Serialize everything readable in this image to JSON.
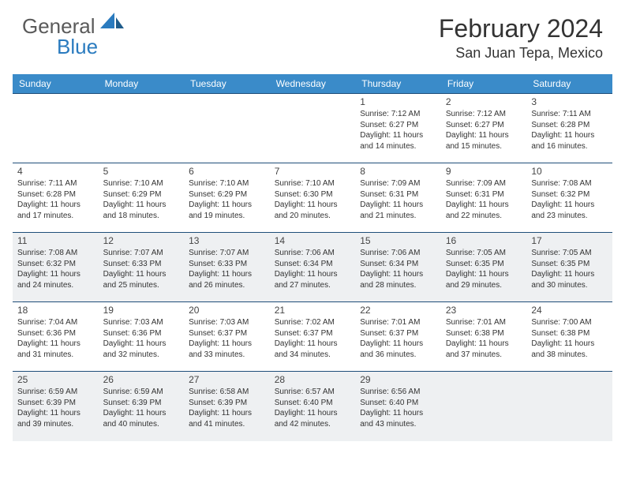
{
  "brand": {
    "part1": "General",
    "part2": "Blue"
  },
  "title": "February 2024",
  "location": "San Juan Tepa, Mexico",
  "colors": {
    "header_bg": "#3a8bc9",
    "header_text": "#ffffff",
    "shaded_bg": "#eef0f2",
    "cell_border": "#1f4e79",
    "logo_gray": "#5a5a5a",
    "logo_blue": "#2a7bbf",
    "text": "#333333"
  },
  "fonts": {
    "title_pt": 32,
    "location_pt": 18,
    "dow_pt": 12,
    "daynum_pt": 12,
    "body_pt": 10
  },
  "days_of_week": [
    "Sunday",
    "Monday",
    "Tuesday",
    "Wednesday",
    "Thursday",
    "Friday",
    "Saturday"
  ],
  "weeks": [
    [
      null,
      null,
      null,
      null,
      {
        "n": "1",
        "sr": "Sunrise: 7:12 AM",
        "ss": "Sunset: 6:27 PM",
        "dl": "Daylight: 11 hours and 14 minutes."
      },
      {
        "n": "2",
        "sr": "Sunrise: 7:12 AM",
        "ss": "Sunset: 6:27 PM",
        "dl": "Daylight: 11 hours and 15 minutes."
      },
      {
        "n": "3",
        "sr": "Sunrise: 7:11 AM",
        "ss": "Sunset: 6:28 PM",
        "dl": "Daylight: 11 hours and 16 minutes."
      }
    ],
    [
      {
        "n": "4",
        "sr": "Sunrise: 7:11 AM",
        "ss": "Sunset: 6:28 PM",
        "dl": "Daylight: 11 hours and 17 minutes."
      },
      {
        "n": "5",
        "sr": "Sunrise: 7:10 AM",
        "ss": "Sunset: 6:29 PM",
        "dl": "Daylight: 11 hours and 18 minutes."
      },
      {
        "n": "6",
        "sr": "Sunrise: 7:10 AM",
        "ss": "Sunset: 6:29 PM",
        "dl": "Daylight: 11 hours and 19 minutes."
      },
      {
        "n": "7",
        "sr": "Sunrise: 7:10 AM",
        "ss": "Sunset: 6:30 PM",
        "dl": "Daylight: 11 hours and 20 minutes."
      },
      {
        "n": "8",
        "sr": "Sunrise: 7:09 AM",
        "ss": "Sunset: 6:31 PM",
        "dl": "Daylight: 11 hours and 21 minutes."
      },
      {
        "n": "9",
        "sr": "Sunrise: 7:09 AM",
        "ss": "Sunset: 6:31 PM",
        "dl": "Daylight: 11 hours and 22 minutes."
      },
      {
        "n": "10",
        "sr": "Sunrise: 7:08 AM",
        "ss": "Sunset: 6:32 PM",
        "dl": "Daylight: 11 hours and 23 minutes."
      }
    ],
    [
      {
        "n": "11",
        "sr": "Sunrise: 7:08 AM",
        "ss": "Sunset: 6:32 PM",
        "dl": "Daylight: 11 hours and 24 minutes."
      },
      {
        "n": "12",
        "sr": "Sunrise: 7:07 AM",
        "ss": "Sunset: 6:33 PM",
        "dl": "Daylight: 11 hours and 25 minutes."
      },
      {
        "n": "13",
        "sr": "Sunrise: 7:07 AM",
        "ss": "Sunset: 6:33 PM",
        "dl": "Daylight: 11 hours and 26 minutes."
      },
      {
        "n": "14",
        "sr": "Sunrise: 7:06 AM",
        "ss": "Sunset: 6:34 PM",
        "dl": "Daylight: 11 hours and 27 minutes."
      },
      {
        "n": "15",
        "sr": "Sunrise: 7:06 AM",
        "ss": "Sunset: 6:34 PM",
        "dl": "Daylight: 11 hours and 28 minutes."
      },
      {
        "n": "16",
        "sr": "Sunrise: 7:05 AM",
        "ss": "Sunset: 6:35 PM",
        "dl": "Daylight: 11 hours and 29 minutes."
      },
      {
        "n": "17",
        "sr": "Sunrise: 7:05 AM",
        "ss": "Sunset: 6:35 PM",
        "dl": "Daylight: 11 hours and 30 minutes."
      }
    ],
    [
      {
        "n": "18",
        "sr": "Sunrise: 7:04 AM",
        "ss": "Sunset: 6:36 PM",
        "dl": "Daylight: 11 hours and 31 minutes."
      },
      {
        "n": "19",
        "sr": "Sunrise: 7:03 AM",
        "ss": "Sunset: 6:36 PM",
        "dl": "Daylight: 11 hours and 32 minutes."
      },
      {
        "n": "20",
        "sr": "Sunrise: 7:03 AM",
        "ss": "Sunset: 6:37 PM",
        "dl": "Daylight: 11 hours and 33 minutes."
      },
      {
        "n": "21",
        "sr": "Sunrise: 7:02 AM",
        "ss": "Sunset: 6:37 PM",
        "dl": "Daylight: 11 hours and 34 minutes."
      },
      {
        "n": "22",
        "sr": "Sunrise: 7:01 AM",
        "ss": "Sunset: 6:37 PM",
        "dl": "Daylight: 11 hours and 36 minutes."
      },
      {
        "n": "23",
        "sr": "Sunrise: 7:01 AM",
        "ss": "Sunset: 6:38 PM",
        "dl": "Daylight: 11 hours and 37 minutes."
      },
      {
        "n": "24",
        "sr": "Sunrise: 7:00 AM",
        "ss": "Sunset: 6:38 PM",
        "dl": "Daylight: 11 hours and 38 minutes."
      }
    ],
    [
      {
        "n": "25",
        "sr": "Sunrise: 6:59 AM",
        "ss": "Sunset: 6:39 PM",
        "dl": "Daylight: 11 hours and 39 minutes."
      },
      {
        "n": "26",
        "sr": "Sunrise: 6:59 AM",
        "ss": "Sunset: 6:39 PM",
        "dl": "Daylight: 11 hours and 40 minutes."
      },
      {
        "n": "27",
        "sr": "Sunrise: 6:58 AM",
        "ss": "Sunset: 6:39 PM",
        "dl": "Daylight: 11 hours and 41 minutes."
      },
      {
        "n": "28",
        "sr": "Sunrise: 6:57 AM",
        "ss": "Sunset: 6:40 PM",
        "dl": "Daylight: 11 hours and 42 minutes."
      },
      {
        "n": "29",
        "sr": "Sunrise: 6:56 AM",
        "ss": "Sunset: 6:40 PM",
        "dl": "Daylight: 11 hours and 43 minutes."
      },
      null,
      null
    ]
  ],
  "shaded_weeks": [
    2,
    4
  ]
}
